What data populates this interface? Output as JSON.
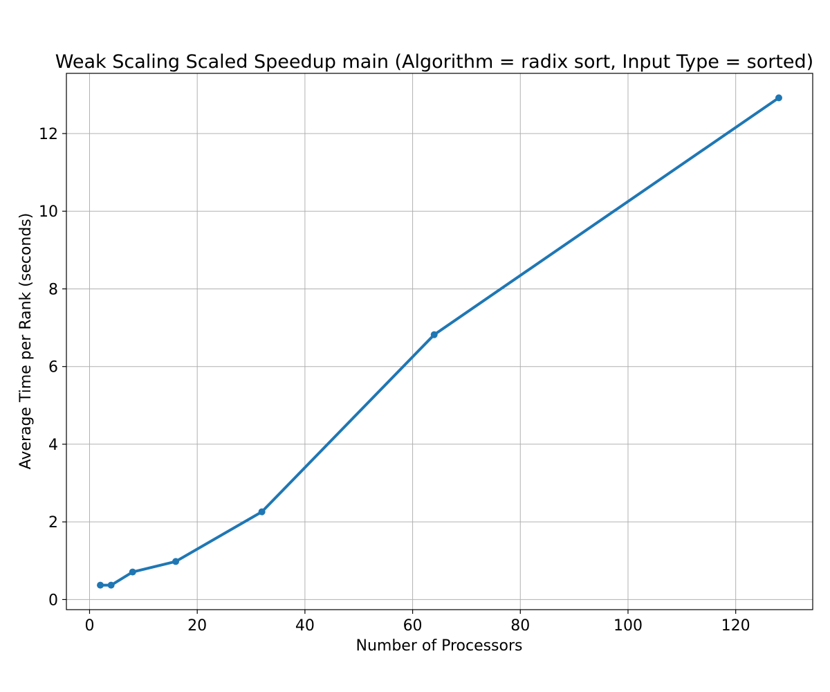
{
  "chart_data": {
    "type": "line",
    "title": "Weak Scaling Scaled Speedup main (Algorithm = radix sort, Input Type = sorted)",
    "xlabel": "Number of Processors",
    "ylabel": "Average Time per Rank (seconds)",
    "xlim": [
      -4.3,
      134.3
    ],
    "ylim": [
      -0.26,
      13.55
    ],
    "xticks": [
      0,
      20,
      40,
      60,
      80,
      100,
      120
    ],
    "yticks": [
      0,
      2,
      4,
      6,
      8,
      10,
      12
    ],
    "grid": true,
    "series": [
      {
        "color": "#1f77b4",
        "x": [
          2,
          4,
          8,
          16,
          32,
          64,
          128
        ],
        "y": [
          0.37,
          0.37,
          0.71,
          0.98,
          2.26,
          6.82,
          12.92
        ]
      }
    ]
  }
}
